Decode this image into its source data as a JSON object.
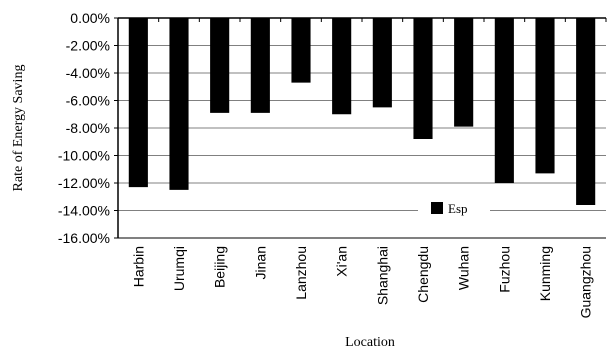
{
  "chart_data": {
    "type": "bar",
    "title": "",
    "xlabel": "Location",
    "ylabel": "Rate of Energy Saving",
    "categories": [
      "Harbin",
      "Urumqi",
      "Beijing",
      "Jinan",
      "Lanzhou",
      "Xi'an",
      "Shanghai",
      "Chengdu",
      "Wuhan",
      "Fuzhou",
      "Kunming",
      "Guangzhou"
    ],
    "series": [
      {
        "name": "Esp",
        "values": [
          -12.3,
          -12.5,
          -6.9,
          -6.9,
          -4.7,
          -7.0,
          -6.5,
          -8.8,
          -7.9,
          -12.0,
          -11.3,
          -13.6
        ],
        "color": "#000000"
      }
    ],
    "ylim": [
      -16,
      0
    ],
    "yticks": [
      0,
      -2,
      -4,
      -6,
      -8,
      -10,
      -12,
      -14,
      -16
    ],
    "ytick_labels": [
      "0.00%",
      "-2.00%",
      "-4.00%",
      "-6.00%",
      "-8.00%",
      "-10.00%",
      "-12.00%",
      "-14.00%",
      "-16.00%"
    ],
    "grid": true,
    "legend": {
      "position": "lower-right-inside"
    }
  }
}
